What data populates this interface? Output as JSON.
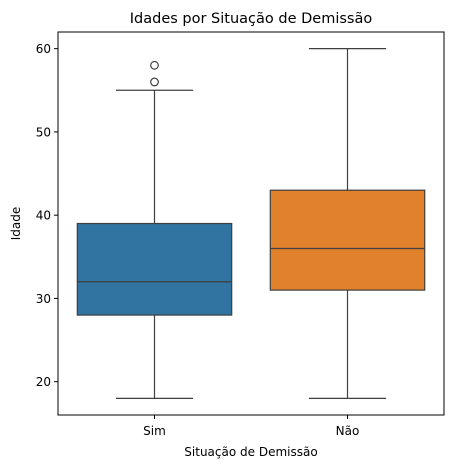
{
  "chart_data": {
    "type": "box",
    "title": "Idades por Situação de Demissão",
    "xlabel": "Situação de Demissão",
    "ylabel": "Idade",
    "ylim": [
      16,
      62
    ],
    "yticks": [
      20,
      30,
      40,
      50,
      60
    ],
    "grid": false,
    "categories": [
      "Sim",
      "Não"
    ],
    "boxes": [
      {
        "category": "Sim",
        "whisker_low": 18,
        "q1": 28,
        "median": 32,
        "q3": 39,
        "whisker_high": 55,
        "outliers": [
          56,
          58
        ],
        "color": "#3274a1"
      },
      {
        "category": "Não",
        "whisker_low": 18,
        "q1": 31,
        "median": 36,
        "q3": 43,
        "whisker_high": 60,
        "outliers": [],
        "color": "#e1812c"
      }
    ]
  }
}
